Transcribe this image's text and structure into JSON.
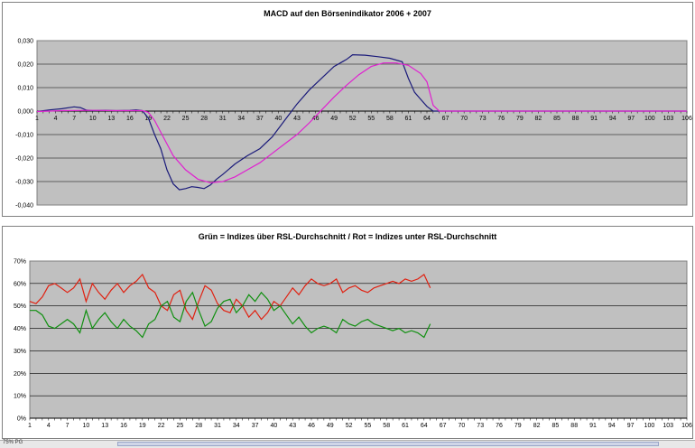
{
  "charts": [
    {
      "title": "MACD auf den Börsenindikator 2006 + 2007",
      "chart_data": {
        "type": "line",
        "title": "MACD auf den Börsenindikator 2006 + 2007",
        "x_tick_labels": [
          "1",
          "4",
          "7",
          "10",
          "13",
          "16",
          "19",
          "22",
          "25",
          "28",
          "31",
          "34",
          "37",
          "40",
          "43",
          "46",
          "49",
          "52",
          "55",
          "58",
          "61",
          "64",
          "67",
          "70",
          "73",
          "76",
          "79",
          "82",
          "85",
          "88",
          "91",
          "94",
          "97",
          "100",
          "103",
          "106"
        ],
        "y_tick_labels": [
          "0,030",
          "0,020",
          "0,010",
          "0,000",
          "-0,010",
          "-0,020",
          "-0,030",
          "-0,040"
        ],
        "ylim": [
          -0.04,
          0.03
        ],
        "xlim": [
          1,
          106
        ],
        "grid": "horizontal",
        "series": [
          {
            "color": "#1a1a7a",
            "points": [
              [
                1,
                -0.0002
              ],
              [
                3,
                0.0005
              ],
              [
                5,
                0.001
              ],
              [
                7,
                0.0018
              ],
              [
                8,
                0.0015
              ],
              [
                9,
                0.0004
              ],
              [
                10,
                0.0002
              ],
              [
                12,
                0.0003
              ],
              [
                14,
                0.0002
              ],
              [
                16,
                0.0003
              ],
              [
                17,
                0.0005
              ],
              [
                18,
                0.0002
              ],
              [
                19,
                -0.003
              ],
              [
                20,
                -0.01
              ],
              [
                21,
                -0.016
              ],
              [
                22,
                -0.025
              ],
              [
                23,
                -0.031
              ],
              [
                24,
                -0.0335
              ],
              [
                25,
                -0.033
              ],
              [
                26,
                -0.0322
              ],
              [
                27,
                -0.0325
              ],
              [
                28,
                -0.033
              ],
              [
                29,
                -0.0315
              ],
              [
                30,
                -0.029
              ],
              [
                31,
                -0.027
              ],
              [
                33,
                -0.0225
              ],
              [
                35,
                -0.019
              ],
              [
                37,
                -0.016
              ],
              [
                39,
                -0.011
              ],
              [
                41,
                -0.004
              ],
              [
                43,
                0.003
              ],
              [
                45,
                0.009
              ],
              [
                47,
                0.014
              ],
              [
                49,
                0.019
              ],
              [
                51,
                0.022
              ],
              [
                52,
                0.024
              ],
              [
                54,
                0.0238
              ],
              [
                56,
                0.0232
              ],
              [
                58,
                0.0225
              ],
              [
                60,
                0.021
              ],
              [
                61,
                0.014
              ],
              [
                62,
                0.008
              ],
              [
                63,
                0.005
              ],
              [
                64,
                0.002
              ],
              [
                65,
                0
              ],
              [
                66,
                0
              ],
              [
                106,
                0
              ]
            ]
          },
          {
            "color": "#e020d0",
            "points": [
              [
                1,
                -0.0002
              ],
              [
                5,
                0.0002
              ],
              [
                10,
                0.0003
              ],
              [
                14,
                0.0002
              ],
              [
                18,
                0.0002
              ],
              [
                19,
                -0.0005
              ],
              [
                20,
                -0.004
              ],
              [
                21,
                -0.009
              ],
              [
                22,
                -0.014
              ],
              [
                23,
                -0.019
              ],
              [
                25,
                -0.025
              ],
              [
                27,
                -0.029
              ],
              [
                29,
                -0.0305
              ],
              [
                31,
                -0.03
              ],
              [
                33,
                -0.028
              ],
              [
                35,
                -0.025
              ],
              [
                37,
                -0.022
              ],
              [
                39,
                -0.018
              ],
              [
                41,
                -0.014
              ],
              [
                43,
                -0.01
              ],
              [
                45,
                -0.005
              ],
              [
                47,
                0.0005
              ],
              [
                49,
                0.006
              ],
              [
                51,
                0.011
              ],
              [
                53,
                0.0155
              ],
              [
                55,
                0.019
              ],
              [
                57,
                0.0205
              ],
              [
                59,
                0.0205
              ],
              [
                61,
                0.0195
              ],
              [
                63,
                0.016
              ],
              [
                64,
                0.0125
              ],
              [
                65,
                0.0025
              ],
              [
                66,
                0
              ],
              [
                106,
                0
              ]
            ]
          }
        ]
      }
    },
    {
      "title": "Grün = Indizes über RSL-Durchschnitt / Rot = Indizes unter RSL-Durchschnitt",
      "chart_data": {
        "type": "line",
        "title": "Grün = Indizes über RSL-Durchschnitt / Rot = Indizes unter RSL-Durchschnitt",
        "x_tick_labels": [
          "1",
          "4",
          "7",
          "10",
          "13",
          "16",
          "19",
          "22",
          "25",
          "28",
          "31",
          "34",
          "37",
          "40",
          "43",
          "46",
          "49",
          "52",
          "55",
          "58",
          "61",
          "64",
          "67",
          "70",
          "73",
          "76",
          "79",
          "82",
          "85",
          "88",
          "91",
          "94",
          "97",
          "100",
          "103",
          "106"
        ],
        "y_tick_labels": [
          "70%",
          "60%",
          "50%",
          "40%",
          "30%",
          "20%",
          "10%",
          "0%"
        ],
        "ylim": [
          0,
          70
        ],
        "xlim": [
          1,
          106
        ],
        "grid": "horizontal",
        "series": [
          {
            "color": "#e02010",
            "points": [
              [
                1,
                52
              ],
              [
                2,
                51
              ],
              [
                3,
                54
              ],
              [
                4,
                59
              ],
              [
                5,
                60
              ],
              [
                6,
                58
              ],
              [
                7,
                56
              ],
              [
                8,
                58
              ],
              [
                9,
                62
              ],
              [
                10,
                52
              ],
              [
                11,
                60
              ],
              [
                12,
                56
              ],
              [
                13,
                53
              ],
              [
                14,
                57
              ],
              [
                15,
                60
              ],
              [
                16,
                56
              ],
              [
                17,
                59
              ],
              [
                18,
                61
              ],
              [
                19,
                64
              ],
              [
                20,
                58
              ],
              [
                21,
                56
              ],
              [
                22,
                50
              ],
              [
                23,
                48
              ],
              [
                24,
                55
              ],
              [
                25,
                57
              ],
              [
                26,
                48
              ],
              [
                27,
                44
              ],
              [
                28,
                52
              ],
              [
                29,
                59
              ],
              [
                30,
                57
              ],
              [
                31,
                51
              ],
              [
                32,
                48
              ],
              [
                33,
                47
              ],
              [
                34,
                53
              ],
              [
                35,
                50
              ],
              [
                36,
                45
              ],
              [
                37,
                48
              ],
              [
                38,
                44
              ],
              [
                39,
                47
              ],
              [
                40,
                52
              ],
              [
                41,
                50
              ],
              [
                42,
                54
              ],
              [
                43,
                58
              ],
              [
                44,
                55
              ],
              [
                45,
                59
              ],
              [
                46,
                62
              ],
              [
                47,
                60
              ],
              [
                48,
                59
              ],
              [
                49,
                60
              ],
              [
                50,
                62
              ],
              [
                51,
                56
              ],
              [
                52,
                58
              ],
              [
                53,
                59
              ],
              [
                54,
                57
              ],
              [
                55,
                56
              ],
              [
                56,
                58
              ],
              [
                57,
                59
              ],
              [
                58,
                60
              ],
              [
                59,
                61
              ],
              [
                60,
                60
              ],
              [
                61,
                62
              ],
              [
                62,
                61
              ],
              [
                63,
                62
              ],
              [
                64,
                64
              ],
              [
                65,
                58
              ]
            ]
          },
          {
            "color": "#109010",
            "points": [
              [
                1,
                48
              ],
              [
                2,
                48
              ],
              [
                3,
                46
              ],
              [
                4,
                41
              ],
              [
                5,
                40
              ],
              [
                6,
                42
              ],
              [
                7,
                44
              ],
              [
                8,
                42
              ],
              [
                9,
                38
              ],
              [
                10,
                48
              ],
              [
                11,
                40
              ],
              [
                12,
                44
              ],
              [
                13,
                47
              ],
              [
                14,
                43
              ],
              [
                15,
                40
              ],
              [
                16,
                44
              ],
              [
                17,
                41
              ],
              [
                18,
                39
              ],
              [
                19,
                36
              ],
              [
                20,
                42
              ],
              [
                21,
                44
              ],
              [
                22,
                50
              ],
              [
                23,
                52
              ],
              [
                24,
                45
              ],
              [
                25,
                43
              ],
              [
                26,
                52
              ],
              [
                27,
                56
              ],
              [
                28,
                48
              ],
              [
                29,
                41
              ],
              [
                30,
                43
              ],
              [
                31,
                49
              ],
              [
                32,
                52
              ],
              [
                33,
                53
              ],
              [
                34,
                47
              ],
              [
                35,
                50
              ],
              [
                36,
                55
              ],
              [
                37,
                52
              ],
              [
                38,
                56
              ],
              [
                39,
                53
              ],
              [
                40,
                48
              ],
              [
                41,
                50
              ],
              [
                42,
                46
              ],
              [
                43,
                42
              ],
              [
                44,
                45
              ],
              [
                45,
                41
              ],
              [
                46,
                38
              ],
              [
                47,
                40
              ],
              [
                48,
                41
              ],
              [
                49,
                40
              ],
              [
                50,
                38
              ],
              [
                51,
                44
              ],
              [
                52,
                42
              ],
              [
                53,
                41
              ],
              [
                54,
                43
              ],
              [
                55,
                44
              ],
              [
                56,
                42
              ],
              [
                57,
                41
              ],
              [
                58,
                40
              ],
              [
                59,
                39
              ],
              [
                60,
                40
              ],
              [
                61,
                38
              ],
              [
                62,
                39
              ],
              [
                63,
                38
              ],
              [
                64,
                36
              ],
              [
                65,
                42
              ]
            ]
          }
        ]
      }
    }
  ],
  "statusbar": {
    "text": "75% PG"
  }
}
